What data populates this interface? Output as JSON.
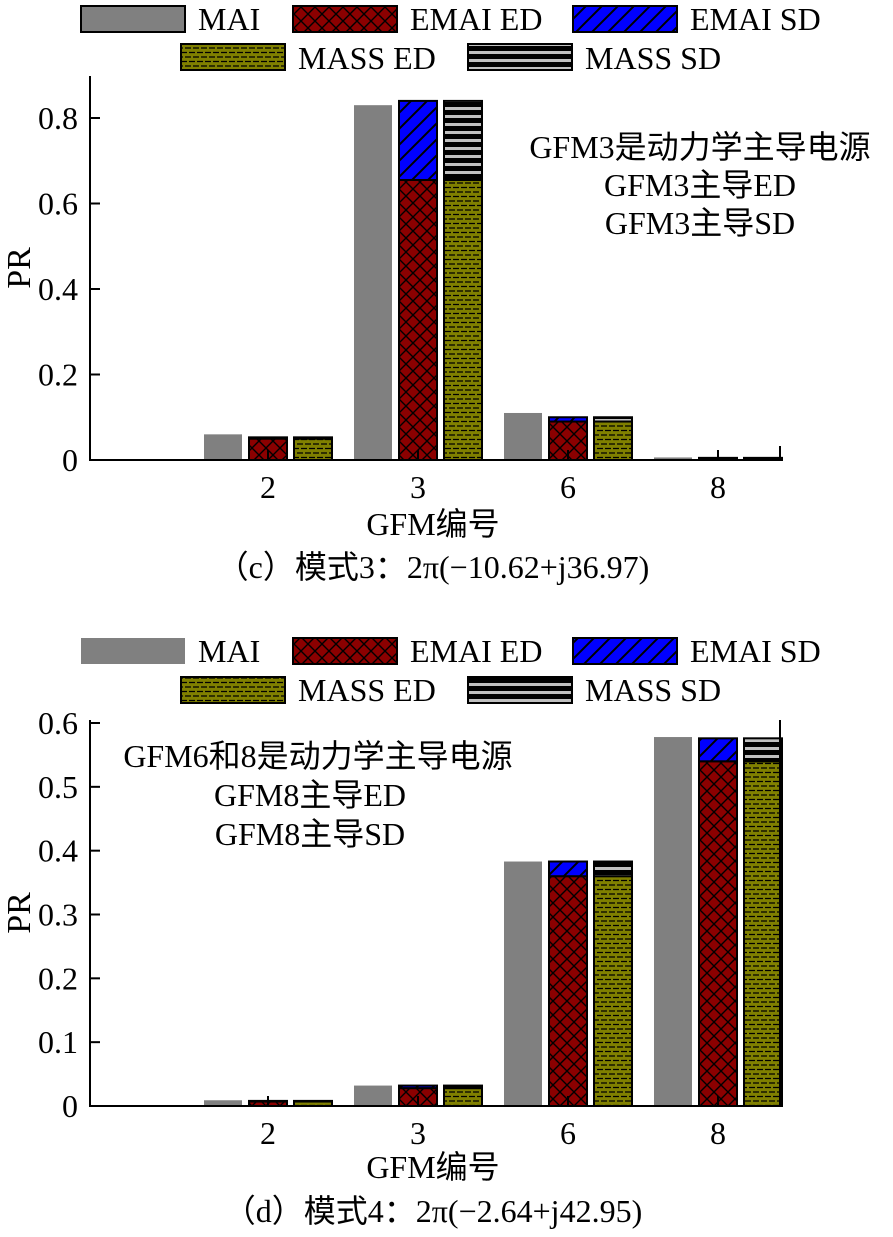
{
  "legend": [
    "MAI",
    "EMAI ED",
    "EMAI SD",
    "MASS ED",
    "MASS SD"
  ],
  "styles": {
    "MAI": "#808080",
    "EMAI ED": "#8b0000",
    "EMAI SD": "#0000ff",
    "MASS ED": "#808000",
    "MASS SD": "#000000"
  },
  "chart_data": [
    {
      "type": "bar",
      "caption": "（c）模式3：2π(−10.62+j36.97)",
      "xlabel": "GFM编号",
      "ylabel": "PR",
      "categories": [
        "2",
        "3",
        "6",
        "8"
      ],
      "ylim": [
        0,
        0.8
      ],
      "yticks": [
        "0",
        "0.2",
        "0.4",
        "0.6",
        "0.8"
      ],
      "legend_placement": "top",
      "annotations": [
        "GFM3是动力学主导电源",
        "GFM3主导ED",
        "GFM3主导SD"
      ],
      "annotation_placement": "top-right",
      "series": [
        {
          "name": "MAI",
          "values": [
            0.06,
            0.83,
            0.11,
            0.006
          ]
        },
        {
          "name": "EMAI ED",
          "values": [
            0.05,
            0.655,
            0.09,
            0.004
          ],
          "stacked_on_top": "EMAI SD"
        },
        {
          "name": "EMAI SD",
          "values": [
            0.003,
            0.185,
            0.01,
            0.001
          ]
        },
        {
          "name": "MASS ED",
          "values": [
            0.05,
            0.655,
            0.09,
            0.004
          ],
          "stacked_on_top": "MASS SD"
        },
        {
          "name": "MASS SD",
          "values": [
            0.003,
            0.185,
            0.01,
            0.001
          ]
        }
      ]
    },
    {
      "type": "bar",
      "caption": "（d）模式4：2π(−2.64+j42.95)",
      "xlabel": "GFM编号",
      "ylabel": "PR",
      "categories": [
        "2",
        "3",
        "6",
        "8"
      ],
      "ylim": [
        0,
        0.6
      ],
      "yticks": [
        "0",
        "0.1",
        "0.2",
        "0.3",
        "0.4",
        "0.5",
        "0.6"
      ],
      "legend_placement": "top",
      "annotations": [
        "GFM6和8是动力学主导电源",
        "GFM8主导ED",
        "GFM8主导SD"
      ],
      "annotation_placement": "top-left",
      "series": [
        {
          "name": "MAI",
          "values": [
            0.009,
            0.032,
            0.383,
            0.578
          ]
        },
        {
          "name": "EMAI ED",
          "values": [
            0.007,
            0.028,
            0.36,
            0.54
          ],
          "stacked_on_top": "EMAI SD"
        },
        {
          "name": "EMAI SD",
          "values": [
            0.001,
            0.004,
            0.023,
            0.036
          ]
        },
        {
          "name": "MASS ED",
          "values": [
            0.007,
            0.028,
            0.36,
            0.54
          ],
          "stacked_on_top": "MASS SD"
        },
        {
          "name": "MASS SD",
          "values": [
            0.001,
            0.004,
            0.023,
            0.036
          ]
        }
      ]
    }
  ]
}
